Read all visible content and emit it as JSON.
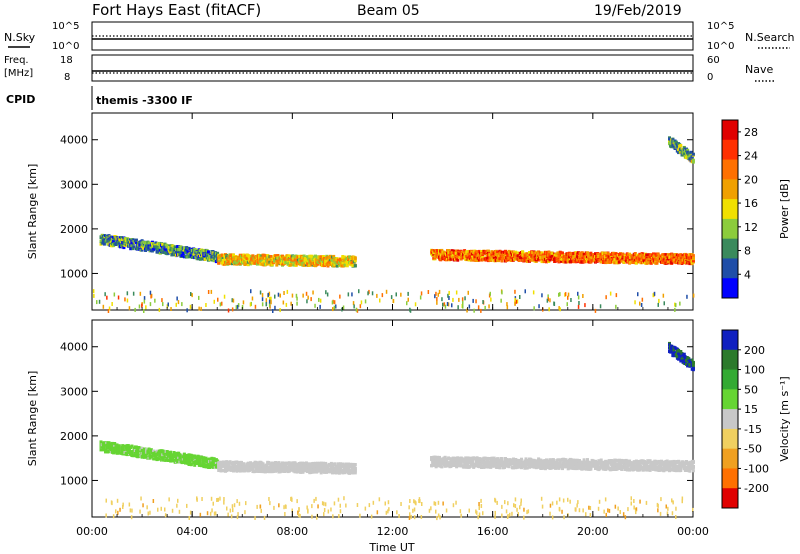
{
  "header": {
    "title": "Fort Hays East (fitACF)",
    "beam": "Beam 05",
    "date": "19/Feb/2019"
  },
  "top_panels": {
    "nsky": {
      "label": "N.Sky",
      "left_ticks": [
        "10^5",
        "10^0"
      ],
      "right_ticks": [
        "10^5",
        "10^0"
      ],
      "right_label": "N.Search"
    },
    "freq": {
      "label_line1": "Freq.",
      "label_line2": "[MHz]",
      "left_ticks": [
        "18",
        "8"
      ],
      "right_ticks": [
        "60",
        "0"
      ],
      "right_label": "Nave"
    },
    "cpid": {
      "label": "CPID",
      "value": "themis -3300 IF"
    }
  },
  "colors": {
    "power_scale": [
      "#0000ff",
      "#1f4ea8",
      "#3a8a5c",
      "#8ccc3c",
      "#f0e000",
      "#f0a000",
      "#ff7000",
      "#ff3000",
      "#e00000"
    ],
    "velocity_scale": [
      "#1020c0",
      "#2c7a2c",
      "#33aa33",
      "#66d533",
      "#c8c8c8",
      "#f0d060",
      "#f0a020",
      "#ff7000",
      "#e00000"
    ]
  },
  "chart_data": [
    {
      "type": "heatmap",
      "name": "power",
      "xlabel": "Time UT",
      "ylabel": "Slant Range [km]",
      "x_ticks": [
        "00:00",
        "04:00",
        "08:00",
        "12:00",
        "16:00",
        "20:00",
        "00:00"
      ],
      "xlim_hours": [
        0,
        24
      ],
      "y_ticks": [
        1000,
        2000,
        3000,
        4000
      ],
      "ylim": [
        180,
        4600
      ],
      "colorbar": {
        "label": "Power [dB]",
        "ticks": [
          4,
          8,
          12,
          16,
          20,
          24,
          28
        ],
        "range": [
          0,
          30
        ]
      },
      "echo_regions": [
        {
          "t_start": 0.3,
          "t_end": 5.0,
          "range_start": 1800,
          "range_end": 1400,
          "value": 8
        },
        {
          "t_start": 5.0,
          "t_end": 10.5,
          "range_start": 1350,
          "range_end": 1300,
          "value": 16
        },
        {
          "t_start": 13.5,
          "t_end": 24.0,
          "range_start": 1450,
          "range_end": 1350,
          "value": 22
        },
        {
          "t_start": 23.0,
          "t_end": 24.0,
          "range_start": 4000,
          "range_end": 3600,
          "value": 10
        }
      ]
    },
    {
      "type": "heatmap",
      "name": "velocity",
      "xlabel": "Time UT",
      "ylabel": "Slant Range [km]",
      "x_ticks": [
        "00:00",
        "04:00",
        "08:00",
        "12:00",
        "16:00",
        "20:00",
        "00:00"
      ],
      "xlim_hours": [
        0,
        24
      ],
      "y_ticks": [
        1000,
        2000,
        3000,
        4000
      ],
      "ylim": [
        180,
        4600
      ],
      "colorbar": {
        "label": "Velocity [m s⁻¹]",
        "ticks": [
          200,
          100,
          50,
          15,
          -15,
          -50,
          -100,
          -200
        ],
        "range": [
          -250,
          250
        ]
      },
      "echo_regions": [
        {
          "t_start": 0.3,
          "t_end": 5.0,
          "range_start": 1800,
          "range_end": 1400,
          "value": 40
        },
        {
          "t_start": 5.0,
          "t_end": 10.5,
          "range_start": 1350,
          "range_end": 1300,
          "value": 5
        },
        {
          "t_start": 13.5,
          "t_end": 24.0,
          "range_start": 1450,
          "range_end": 1350,
          "value": -5
        },
        {
          "t_start": 23.0,
          "t_end": 24.0,
          "range_start": 4000,
          "range_end": 3600,
          "value": 200
        }
      ]
    }
  ]
}
